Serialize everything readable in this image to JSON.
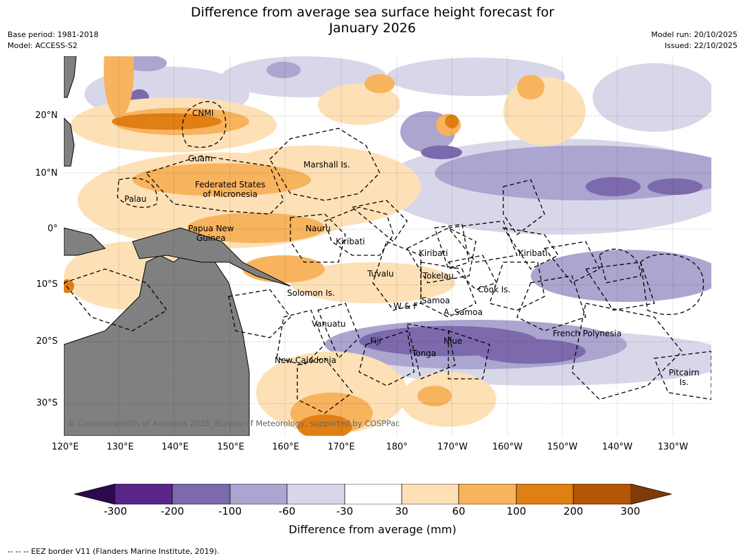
{
  "title": "Difference from average sea surface height forecast for\nJanuary 2026",
  "meta_left": [
    "Base period: 1981-2018",
    "Model: ACCESS-S2"
  ],
  "meta_right": [
    "Model run: 20/10/2025",
    "Issued: 22/10/2025"
  ],
  "lat_labels": [
    "20°N",
    "10°N",
    "0°",
    "10°S",
    "20°S",
    "30°S"
  ],
  "lon_labels": [
    "120°E",
    "130°E",
    "140°E",
    "150°E",
    "160°E",
    "170°E",
    "180°",
    "170°W",
    "160°W",
    "150°W",
    "140°W",
    "130°W"
  ],
  "places": [
    "CNMI",
    "Guam",
    "Marshall Is.",
    "Federated States\nof Micronesia",
    "Palau",
    "Papua New\nGuinea",
    "Nauru",
    "Kiribati",
    "Kiribati",
    "Kiribati",
    "Tuvalu",
    "Tokelau",
    "Solomon Is.",
    "Samoa",
    "W & F",
    "A. Samoa",
    "Cook Is.",
    "Vanuatu",
    "Fiji",
    "Niue",
    "Tonga",
    "French Polynesia",
    "New Caledonia",
    "Pitcairn\nIs."
  ],
  "copyright": "© Commonwealth of Australia 2025, Bureau of Meteorology, supported by COSPPac",
  "colorbar": {
    "ticks": [
      "-300",
      "-200",
      "-100",
      "-60",
      "-30",
      "30",
      "60",
      "100",
      "200",
      "300"
    ],
    "colors": [
      "#2d0a4e",
      "#5a2589",
      "#7c6aad",
      "#aba5cf",
      "#d8d7e9",
      "#ffffff",
      "#fde0b6",
      "#f8b35e",
      "#e07f14",
      "#b45606",
      "#7f3b08"
    ],
    "title": "Difference from average (mm)"
  },
  "legend": "--  --  -- EEZ border V11 (Flanders Marine Institute, 2019)."
}
